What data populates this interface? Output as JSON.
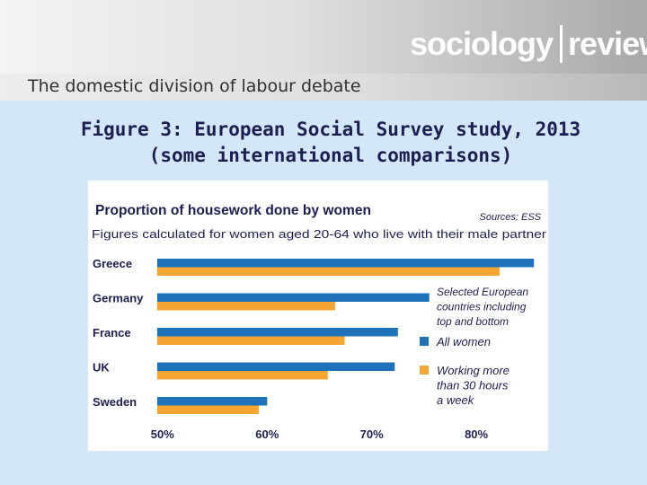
{
  "header": {
    "logo_left": "sociology",
    "logo_right": "review"
  },
  "slide": {
    "subtitle": "The domestic division of labour debate",
    "title_line1": "Figure 3: European Social Survey study, 2013",
    "title_line2": "(some international comparisons)"
  },
  "colors": {
    "all_women": "#1e72ba",
    "working_30h": "#f7a532",
    "text": "#1d1f52"
  },
  "chart_data": {
    "type": "bar",
    "orientation": "horizontal",
    "title": "Proportion of housework done by women",
    "source": "Sources: ESS",
    "subtitle": "Figures calculated for women aged 20-64 who live with their male partner",
    "annotation": [
      "Selected European",
      "countries including",
      "top and bottom"
    ],
    "categories": [
      "Greece",
      "Germany",
      "France",
      "UK",
      "Sweden"
    ],
    "series": [
      {
        "name": "All women",
        "values": [
          85.5,
          75.5,
          72.5,
          72.2,
          60.0
        ]
      },
      {
        "name": "Working more than 30 hours a week",
        "name_lines": [
          "Working more",
          "than 30 hours",
          "a week"
        ],
        "values": [
          82.2,
          66.5,
          67.4,
          65.8,
          59.2
        ]
      }
    ],
    "xlim": [
      49.5,
      86.0
    ],
    "xticks": [
      50,
      60,
      70,
      80
    ],
    "xtick_labels": [
      "50%",
      "60%",
      "70%",
      "80%"
    ],
    "legend_position": "right"
  }
}
